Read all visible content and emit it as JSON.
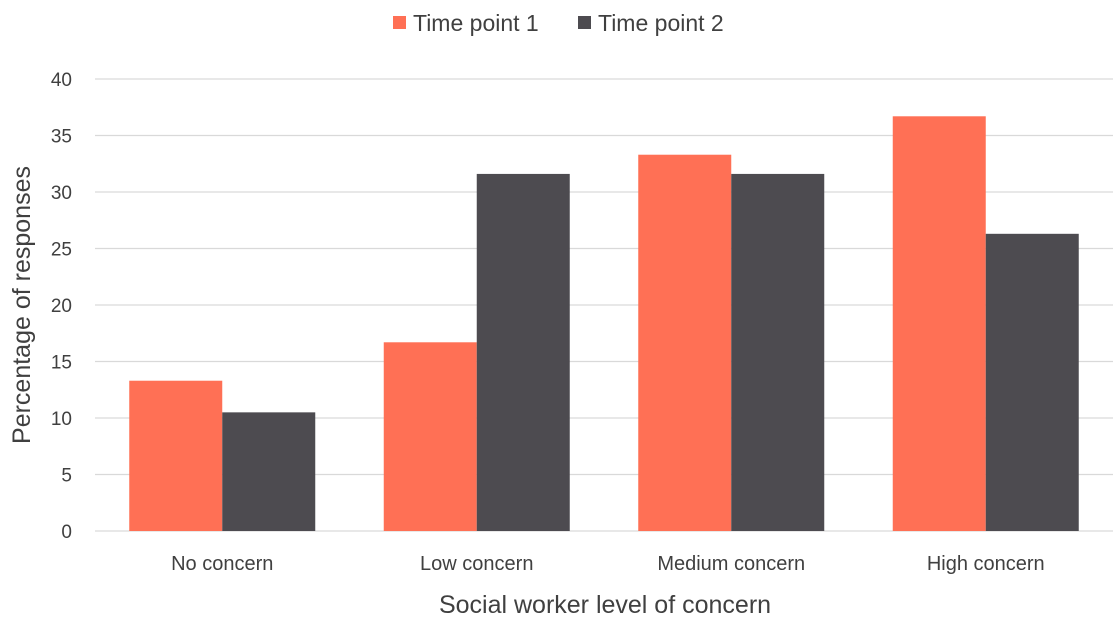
{
  "chart_data": {
    "type": "bar",
    "title": "",
    "xlabel": "Social worker level of concern",
    "ylabel": "Percentage of responses",
    "categories": [
      "No concern",
      "Low concern",
      "Medium concern",
      "High concern"
    ],
    "series": [
      {
        "name": "Time point 1",
        "color": "#FF7055",
        "values": [
          13.3,
          16.7,
          33.3,
          36.7
        ]
      },
      {
        "name": "Time point 2",
        "color": "#4D4B50",
        "values": [
          10.5,
          31.6,
          31.6,
          26.3
        ]
      }
    ],
    "ylim": [
      0,
      40
    ],
    "yticks": [
      "0",
      "5",
      "10",
      "15",
      "20",
      "25",
      "30",
      "35",
      "40"
    ],
    "grid": true,
    "legend_position": "top"
  }
}
